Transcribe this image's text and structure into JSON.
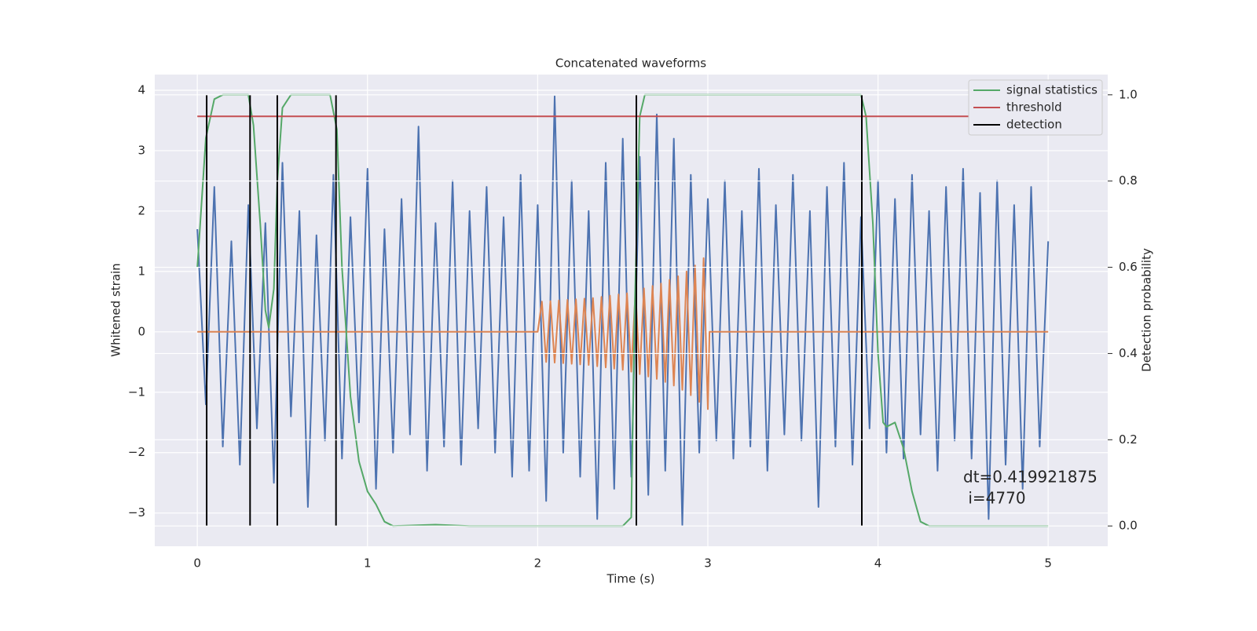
{
  "chart_data": {
    "type": "line",
    "title": "Concatenated waveforms",
    "x_label": "Time (s)",
    "y_label": "Whitened strain",
    "y2_label": "Detection probability",
    "xlim": [
      -0.25,
      5.35
    ],
    "ylim": [
      -3.55,
      4.26
    ],
    "y2lim": [
      -0.047,
      1.047
    ],
    "xticks": [
      0,
      1,
      2,
      3,
      4,
      5
    ],
    "yticks": [
      {
        "value": -3,
        "label": "−3"
      },
      {
        "value": -2,
        "label": "−2"
      },
      {
        "value": -1,
        "label": "−1"
      },
      0,
      1,
      2,
      3,
      4
    ],
    "y2ticks": [
      {
        "value": 0,
        "label": "0.0"
      },
      {
        "value": 0.2,
        "label": "0.2"
      },
      {
        "value": 0.4,
        "label": "0.4"
      },
      {
        "value": 0.6,
        "label": "0.6"
      },
      {
        "value": 0.8,
        "label": "0.8"
      },
      {
        "value": 1,
        "label": "1.0"
      }
    ],
    "grid": true,
    "legend": "upper right",
    "annotation": [
      "dt=0.419921875",
      " i=4770"
    ],
    "series": [
      {
        "color": "#4c72b0",
        "x": [
          0,
          0.05,
          0.1,
          0.15,
          0.2,
          0.25,
          0.3,
          0.35,
          0.4,
          0.45,
          0.5,
          0.55,
          0.6,
          0.65,
          0.7,
          0.75,
          0.8,
          0.85,
          0.9,
          0.95,
          1,
          1.05,
          1.1,
          1.15,
          1.2,
          1.25,
          1.3,
          1.35,
          1.4,
          1.45,
          1.5,
          1.55,
          1.6,
          1.65,
          1.7,
          1.75,
          1.8,
          1.85,
          1.9,
          1.95,
          2,
          2.05,
          2.1,
          2.15,
          2.2,
          2.25,
          2.3,
          2.35,
          2.4,
          2.45,
          2.5,
          2.55,
          2.6,
          2.65,
          2.7,
          2.75,
          2.8,
          2.85,
          2.9,
          2.95,
          3,
          3.05,
          3.1,
          3.15,
          3.2,
          3.25,
          3.3,
          3.35,
          3.4,
          3.45,
          3.5,
          3.55,
          3.6,
          3.65,
          3.7,
          3.75,
          3.8,
          3.85,
          3.9,
          3.95,
          4,
          4.05,
          4.1,
          4.15,
          4.2,
          4.25,
          4.3,
          4.35,
          4.4,
          4.45,
          4.5,
          4.55,
          4.6,
          4.65,
          4.7,
          4.75,
          4.8,
          4.85,
          4.9,
          4.95,
          5
        ],
        "values": [
          1.7,
          -1.2,
          2.4,
          -1.9,
          1.5,
          -2.2,
          2.1,
          -1.6,
          1.8,
          -2.5,
          2.8,
          -1.4,
          2.0,
          -2.9,
          1.6,
          -1.8,
          2.6,
          -2.1,
          1.9,
          -1.5,
          2.7,
          -2.6,
          1.7,
          -2.0,
          2.2,
          -1.7,
          3.4,
          -2.3,
          1.8,
          -1.9,
          2.5,
          -2.2,
          2.0,
          -1.6,
          2.4,
          -2.0,
          1.9,
          -2.4,
          2.6,
          -2.3,
          2.1,
          -2.8,
          3.9,
          -2.0,
          2.5,
          -2.4,
          2.0,
          -3.1,
          2.8,
          -2.6,
          3.2,
          -2.4,
          2.9,
          -2.7,
          3.6,
          -2.3,
          3.2,
          -3.2,
          2.6,
          -2.0,
          2.2,
          -1.8,
          2.5,
          -2.1,
          2.0,
          -1.9,
          2.7,
          -2.3,
          2.1,
          -1.7,
          2.6,
          -1.8,
          2.0,
          -2.9,
          2.4,
          -1.9,
          2.8,
          -2.2,
          1.9,
          -1.6,
          2.5,
          -2.0,
          2.2,
          -2.1,
          2.6,
          -1.7,
          2.0,
          -2.3,
          2.4,
          -1.8,
          2.7,
          -2.1,
          2.3,
          -3.1,
          2.5,
          -2.2,
          2.1,
          -2.6,
          2.4,
          -1.9,
          1.5
        ]
      },
      {
        "color": "#dd8452",
        "x": [
          0,
          2.0,
          2.025,
          2.05,
          2.075,
          2.1,
          2.125,
          2.15,
          2.175,
          2.2,
          2.225,
          2.25,
          2.275,
          2.3,
          2.325,
          2.35,
          2.375,
          2.4,
          2.425,
          2.45,
          2.475,
          2.5,
          2.525,
          2.55,
          2.575,
          2.6,
          2.625,
          2.65,
          2.675,
          2.7,
          2.725,
          2.75,
          2.775,
          2.8,
          2.825,
          2.85,
          2.875,
          2.9,
          2.925,
          2.95,
          2.975,
          3.0,
          3.01,
          5
        ],
        "values": [
          0,
          0,
          0.5,
          -0.5,
          0.51,
          -0.51,
          0.52,
          -0.52,
          0.53,
          -0.53,
          0.54,
          -0.54,
          0.55,
          -0.55,
          0.56,
          -0.57,
          0.58,
          -0.59,
          0.6,
          -0.61,
          0.62,
          -0.63,
          0.64,
          -0.66,
          0.68,
          -0.7,
          0.72,
          -0.74,
          0.76,
          -0.78,
          0.8,
          -0.83,
          0.86,
          -0.89,
          0.92,
          -0.96,
          1.0,
          -1.05,
          1.1,
          -1.16,
          1.22,
          -1.28,
          0,
          0
        ]
      },
      {
        "name": "signal statistics",
        "color": "#55a868",
        "axis": "y2",
        "x": [
          0,
          0.05,
          0.1,
          0.15,
          0.3,
          0.33,
          0.37,
          0.4,
          0.42,
          0.45,
          0.47,
          0.5,
          0.55,
          0.78,
          0.82,
          0.85,
          0.9,
          0.95,
          1.0,
          1.05,
          1.1,
          1.15,
          1.4,
          1.6,
          2.5,
          2.55,
          2.57,
          2.6,
          2.63,
          3.9,
          3.93,
          3.97,
          4.0,
          4.03,
          4.05,
          4.1,
          4.15,
          4.2,
          4.25,
          4.3,
          5.0
        ],
        "values": [
          0.6,
          0.9,
          0.99,
          1.0,
          1.0,
          0.93,
          0.7,
          0.5,
          0.46,
          0.55,
          0.8,
          0.97,
          1.0,
          1.0,
          0.92,
          0.6,
          0.3,
          0.15,
          0.08,
          0.05,
          0.01,
          0.0,
          0.003,
          0.0,
          0.0,
          0.02,
          0.5,
          0.95,
          1.0,
          1.0,
          0.95,
          0.7,
          0.4,
          0.24,
          0.23,
          0.24,
          0.18,
          0.08,
          0.01,
          0.0,
          0.0
        ]
      },
      {
        "name": "threshold",
        "color": "#c44e52",
        "axis": "y2",
        "x": [
          0,
          5.1
        ],
        "values": [
          0.95,
          0.95
        ]
      },
      {
        "name": "detection",
        "color": "#000000",
        "axis": "y2",
        "vlines": true,
        "span": [
          0,
          1
        ],
        "x": [
          0.055,
          0.31,
          0.47,
          0.815,
          2.58,
          3.905
        ]
      }
    ]
  }
}
